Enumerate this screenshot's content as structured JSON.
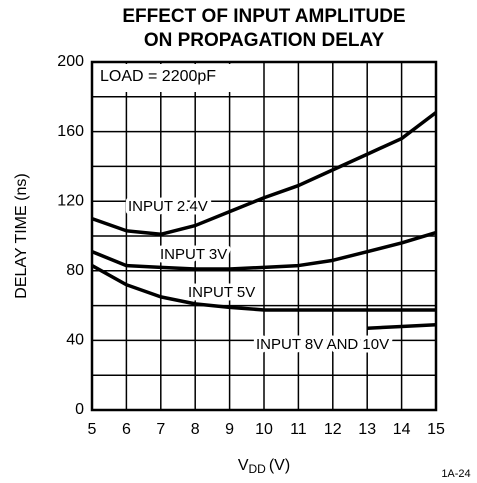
{
  "chart_data": {
    "type": "line",
    "title": [
      "EFFECT OF INPUT AMPLITUDE",
      "ON PROPAGATION DELAY"
    ],
    "y_label": "DELAY TIME (ns)",
    "x_label": {
      "main": "V",
      "sub": "DD",
      "unit": "(V)"
    },
    "annotation": "LOAD = 2200pF",
    "figure_id": "1A-24",
    "x": [
      5,
      6,
      7,
      8,
      9,
      10,
      11,
      12,
      13,
      14,
      15
    ],
    "series": [
      {
        "name": "INPUT 2.4V",
        "color": "#000000",
        "values": [
          110,
          103,
          101,
          106,
          114,
          122,
          129,
          138,
          147,
          156,
          171
        ]
      },
      {
        "name": "INPUT 3V",
        "color": "#000000",
        "values": [
          91,
          83,
          82,
          81,
          81,
          82,
          83,
          86,
          91,
          96,
          102
        ]
      },
      {
        "name": "INPUT 5V",
        "color": "#000000",
        "values": [
          83,
          72,
          65,
          61,
          59,
          57.5,
          57.5,
          57.5,
          57.5,
          57.5,
          57.5
        ]
      },
      {
        "name": "INPUT 8V AND 10V",
        "color": "#000000",
        "values": [
          null,
          null,
          null,
          null,
          null,
          null,
          null,
          null,
          47,
          48,
          49
        ]
      }
    ],
    "xlim": [
      5,
      15
    ],
    "xticks": [
      5,
      6,
      7,
      8,
      9,
      10,
      11,
      12,
      13,
      14,
      15
    ],
    "ylim": [
      0,
      200
    ],
    "yticks": [
      0,
      40,
      80,
      120,
      160,
      200
    ],
    "y_minor_ticks": [
      20,
      60,
      100,
      140,
      180
    ],
    "grid": true
  }
}
